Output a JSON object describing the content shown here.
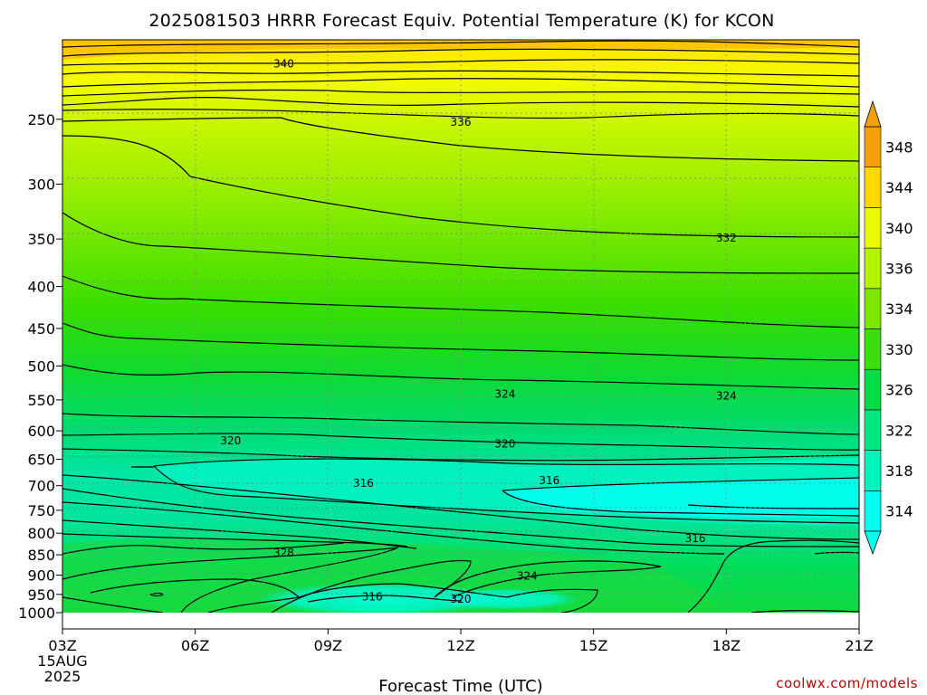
{
  "chart_data": {
    "type": "heatmap",
    "title": "2025081503 HRRR Forecast Equiv. Potential Temperature (K) for KCON",
    "xlabel": "Forecast Time (UTC)",
    "ylabel": "",
    "x_ticks": [
      "03Z",
      "06Z",
      "09Z",
      "12Z",
      "15Z",
      "18Z",
      "21Z"
    ],
    "x_start_date": [
      "15AUG",
      "2025"
    ],
    "y_ticks": [
      "250",
      "300",
      "350",
      "400",
      "450",
      "500",
      "550",
      "600",
      "650",
      "700",
      "750",
      "800",
      "850",
      "900",
      "950",
      "1000"
    ],
    "y_range": [
      200,
      1000
    ],
    "y_scale": "log",
    "colorbar": {
      "levels": [
        314,
        318,
        322,
        326,
        330,
        334,
        336,
        340,
        344,
        348
      ],
      "colors": [
        "#00ffee",
        "#00f4bc",
        "#00e680",
        "#00dc46",
        "#3cde0e",
        "#7ce600",
        "#b4f200",
        "#ecfa00",
        "#ffd800",
        "#f2a00c"
      ]
    },
    "ground_color": "#a0522d",
    "contour_labels": [
      {
        "text": "340",
        "hour": 8.0,
        "p": 214
      },
      {
        "text": "336",
        "hour": 12.0,
        "p": 252
      },
      {
        "text": "332",
        "hour": 18.0,
        "p": 349
      },
      {
        "text": "324",
        "hour": 13.0,
        "p": 541
      },
      {
        "text": "324",
        "hour": 18.0,
        "p": 544
      },
      {
        "text": "320",
        "hour": 6.8,
        "p": 617
      },
      {
        "text": "320",
        "hour": 13.0,
        "p": 622
      },
      {
        "text": "316",
        "hour": 9.8,
        "p": 695
      },
      {
        "text": "316",
        "hour": 14.0,
        "p": 690
      },
      {
        "text": "316",
        "hour": 17.3,
        "p": 812
      },
      {
        "text": "328",
        "hour": 8.0,
        "p": 845
      },
      {
        "text": "324",
        "hour": 13.5,
        "p": 902
      },
      {
        "text": "316",
        "hour": 10.0,
        "p": 957
      },
      {
        "text": "320",
        "hour": 12.0,
        "p": 962
      }
    ],
    "grid": true
  },
  "credit": "coolwx.com/models"
}
